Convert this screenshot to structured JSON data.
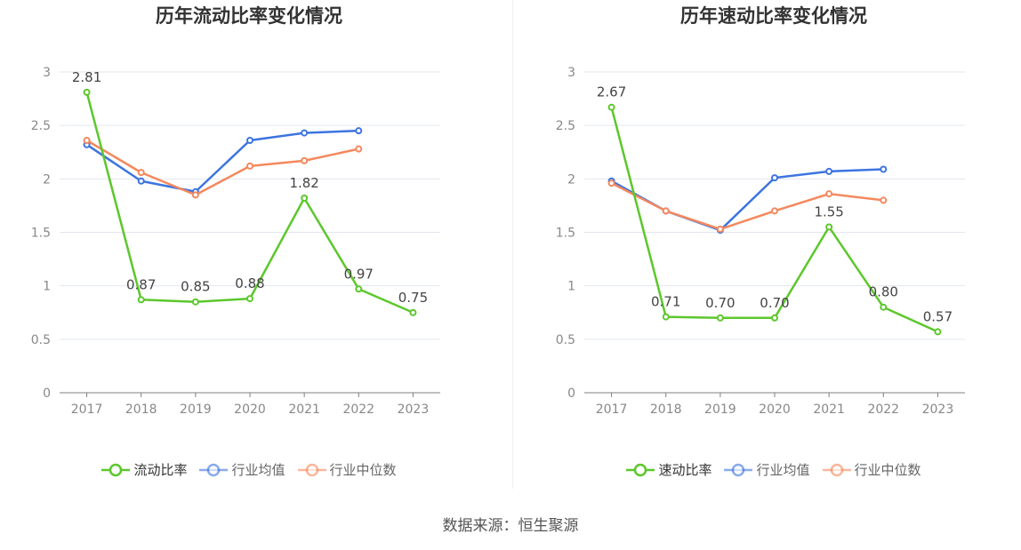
{
  "chart_data": [
    {
      "type": "line",
      "title": "历年流动比率变化情况",
      "categories": [
        "2017",
        "2018",
        "2019",
        "2020",
        "2021",
        "2022",
        "2023"
      ],
      "ylim": [
        0,
        3
      ],
      "yticks": [
        "0",
        "0.5",
        "1",
        "1.5",
        "2",
        "2.5",
        "3"
      ],
      "grid": true,
      "legend_position": "bottom-center",
      "series": [
        {
          "name": "流动比率",
          "color": "#5cc72c",
          "labeled": true,
          "values": [
            2.81,
            0.87,
            0.85,
            0.88,
            1.82,
            0.97,
            0.75
          ],
          "labels": [
            "2.81",
            "0.87",
            "0.85",
            "0.88",
            "1.82",
            "0.97",
            "0.75"
          ]
        },
        {
          "name": "行业均值",
          "color": "#3d74e0",
          "labeled": false,
          "values": [
            2.32,
            1.98,
            1.88,
            2.36,
            2.43,
            2.45,
            null
          ]
        },
        {
          "name": "行业中位数",
          "color": "#f5885d",
          "labeled": false,
          "values": [
            2.36,
            2.06,
            1.85,
            2.12,
            2.17,
            2.28,
            null
          ]
        }
      ]
    },
    {
      "type": "line",
      "title": "历年速动比率变化情况",
      "categories": [
        "2017",
        "2018",
        "2019",
        "2020",
        "2021",
        "2022",
        "2023"
      ],
      "ylim": [
        0,
        3
      ],
      "yticks": [
        "0",
        "0.5",
        "1",
        "1.5",
        "2",
        "2.5",
        "3"
      ],
      "grid": true,
      "legend_position": "bottom-center",
      "series": [
        {
          "name": "速动比率",
          "color": "#5cc72c",
          "labeled": true,
          "values": [
            2.67,
            0.71,
            0.7,
            0.7,
            1.55,
            0.8,
            0.57
          ],
          "labels": [
            "2.67",
            "0.71",
            "0.70",
            "0.70",
            "1.55",
            "0.80",
            "0.57"
          ]
        },
        {
          "name": "行业均值",
          "color": "#3d74e0",
          "labeled": false,
          "values": [
            1.98,
            1.7,
            1.52,
            2.01,
            2.07,
            2.09,
            null
          ]
        },
        {
          "name": "行业中位数",
          "color": "#f5885d",
          "labeled": false,
          "values": [
            1.96,
            1.7,
            1.53,
            1.7,
            1.86,
            1.8,
            null
          ]
        }
      ]
    }
  ],
  "source": "数据来源：恒生聚源"
}
